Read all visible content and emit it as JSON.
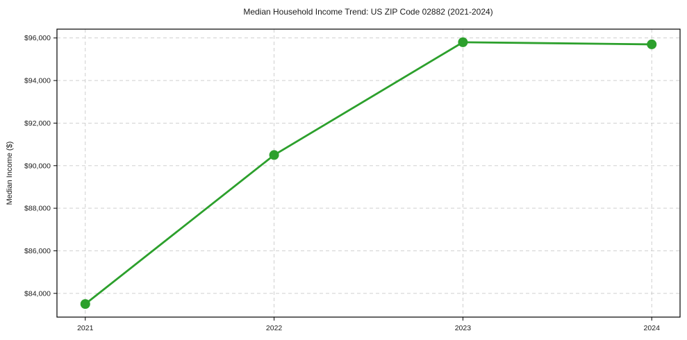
{
  "chart_data": {
    "type": "line",
    "title": "Median Household Income Trend: US ZIP Code 02882 (2021-2024)",
    "xlabel": "",
    "ylabel": "Median Income ($)",
    "x": [
      2021,
      2022,
      2023,
      2024
    ],
    "series": [
      {
        "name": "Median Household Income",
        "values": [
          83500,
          90500,
          95800,
          95700
        ],
        "color": "#2ca02c",
        "marker": "circle"
      }
    ],
    "xticks": [
      2021,
      2022,
      2023,
      2024
    ],
    "xtick_labels": [
      "2021",
      "2022",
      "2023",
      "2024"
    ],
    "yticks": [
      84000,
      86000,
      88000,
      90000,
      92000,
      94000,
      96000
    ],
    "ytick_labels": [
      "$84,000",
      "$86,000",
      "$88,000",
      "$90,000",
      "$92,000",
      "$94,000",
      "$96,000"
    ],
    "xlim": [
      2020.85,
      2024.15
    ],
    "ylim": [
      82885,
      96415
    ],
    "grid": true,
    "grid_style": "dashed",
    "legend": "none",
    "colors": {
      "line": "#2ca02c",
      "grid": "#c9c9c9",
      "spine": "#000000",
      "background": "#ffffff",
      "text": "#1a1a1a"
    }
  }
}
